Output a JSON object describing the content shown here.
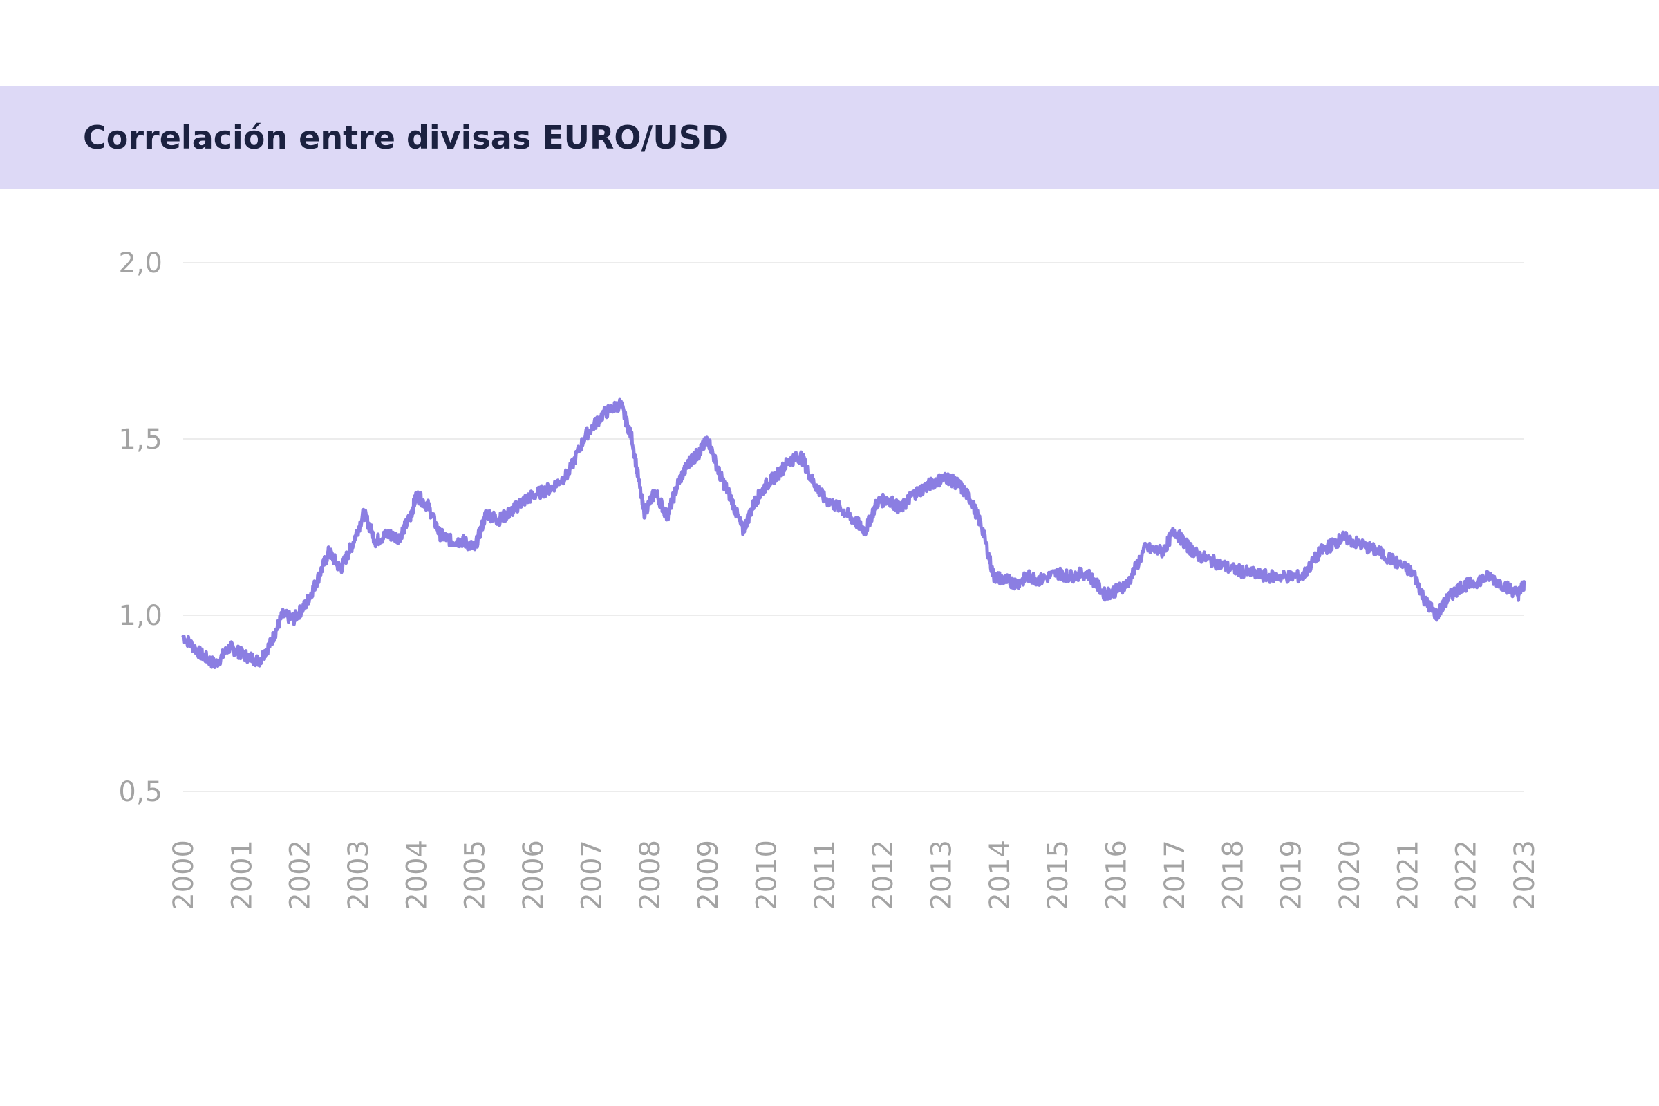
{
  "header": {
    "title": "Correlación entre divisas EURO/USD"
  },
  "chart_data": {
    "type": "line",
    "title": "Correlación entre divisas EURO/USD",
    "xlabel": "",
    "ylabel": "",
    "ylim": [
      0.5,
      2.0
    ],
    "xlim": [
      2000,
      2023
    ],
    "y_ticks": [
      {
        "value": 0.5,
        "label": "0,5"
      },
      {
        "value": 1.0,
        "label": "1,0"
      },
      {
        "value": 1.5,
        "label": "1,5"
      },
      {
        "value": 2.0,
        "label": "2,0"
      }
    ],
    "x_ticks": [
      "2000",
      "2001",
      "2002",
      "2003",
      "2004",
      "2005",
      "2006",
      "2007",
      "2008",
      "2009",
      "2010",
      "2011",
      "2012",
      "2013",
      "2014",
      "2015",
      "2016",
      "2017",
      "2018",
      "2019",
      "2020",
      "2021",
      "2022",
      "2023"
    ],
    "grid": true,
    "line_color": "#8b7ee2",
    "series": [
      {
        "x": [
          2000.0,
          2000.3,
          2000.55,
          2000.8,
          2001.0,
          2001.3,
          2001.5,
          2001.7,
          2001.9,
          2002.1,
          2002.3,
          2002.5,
          2002.7,
          2002.9,
          2003.1,
          2003.3,
          2003.5,
          2003.7,
          2003.9,
          2004.0,
          2004.2,
          2004.4,
          2004.6,
          2004.8,
          2005.0,
          2005.2,
          2005.4,
          2005.6,
          2005.8,
          2006.0,
          2006.3,
          2006.6,
          2006.9,
          2007.2,
          2007.5,
          2007.7,
          2007.9,
          2008.1,
          2008.3,
          2008.5,
          2008.7,
          2008.85,
          2009.0,
          2009.2,
          2009.4,
          2009.6,
          2009.8,
          2010.0,
          2010.2,
          2010.4,
          2010.6,
          2010.8,
          2011.0,
          2011.3,
          2011.5,
          2011.7,
          2011.9,
          2012.1,
          2012.3,
          2012.5,
          2012.7,
          2012.9,
          2013.1,
          2013.3,
          2013.5,
          2013.7,
          2013.9,
          2014.1,
          2014.3,
          2014.5,
          2014.7,
          2015.0,
          2015.2,
          2015.5,
          2015.8,
          2016.0,
          2016.2,
          2016.5,
          2016.8,
          2017.0,
          2017.2,
          2017.4,
          2017.7,
          2018.0,
          2018.3,
          2018.6,
          2018.9,
          2019.2,
          2019.5,
          2019.7,
          2019.9,
          2020.2,
          2020.5,
          2020.8,
          2021.1,
          2021.3,
          2021.5,
          2021.7,
          2021.9,
          2022.1,
          2022.4,
          2022.7,
          2022.9,
          2023.0
        ],
        "y": [
          0.94,
          0.89,
          0.86,
          0.91,
          0.89,
          0.87,
          0.92,
          1.0,
          0.99,
          1.03,
          1.1,
          1.18,
          1.13,
          1.2,
          1.29,
          1.21,
          1.23,
          1.22,
          1.28,
          1.34,
          1.31,
          1.23,
          1.21,
          1.21,
          1.19,
          1.29,
          1.27,
          1.29,
          1.32,
          1.34,
          1.36,
          1.4,
          1.51,
          1.57,
          1.6,
          1.5,
          1.29,
          1.35,
          1.28,
          1.38,
          1.44,
          1.46,
          1.5,
          1.4,
          1.33,
          1.24,
          1.32,
          1.37,
          1.4,
          1.44,
          1.45,
          1.38,
          1.33,
          1.3,
          1.27,
          1.24,
          1.32,
          1.33,
          1.3,
          1.34,
          1.36,
          1.38,
          1.39,
          1.37,
          1.33,
          1.25,
          1.11,
          1.1,
          1.09,
          1.11,
          1.1,
          1.12,
          1.11,
          1.12,
          1.06,
          1.07,
          1.09,
          1.19,
          1.18,
          1.24,
          1.2,
          1.17,
          1.15,
          1.13,
          1.12,
          1.11,
          1.11,
          1.11,
          1.18,
          1.2,
          1.22,
          1.2,
          1.18,
          1.15,
          1.12,
          1.04,
          1.0,
          1.05,
          1.08,
          1.09,
          1.11,
          1.08,
          1.06,
          1.09
        ]
      }
    ]
  }
}
